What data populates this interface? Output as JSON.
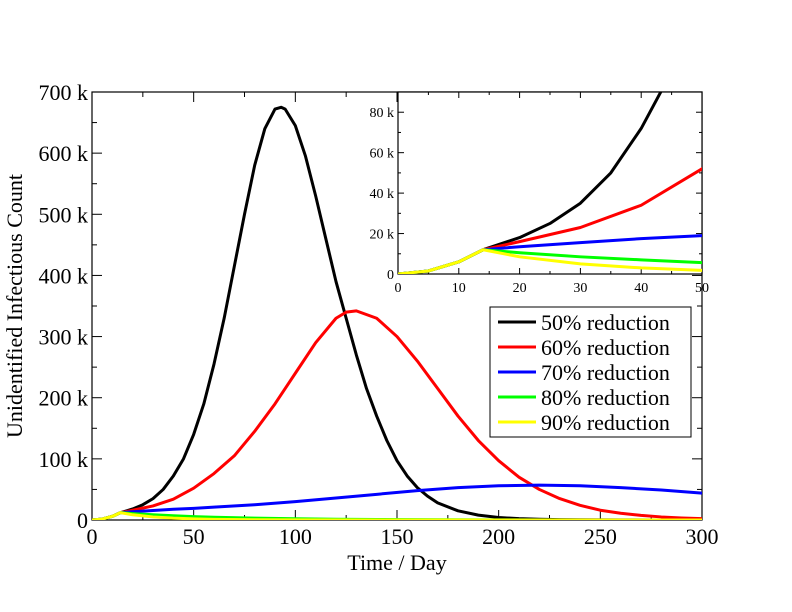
{
  "chart_data": {
    "type": "line",
    "xlabel": "Time / Day",
    "ylabel": "Unidentified Infectious Count",
    "xlim": [
      0,
      300
    ],
    "ylim": [
      0,
      700000
    ],
    "x_ticks": [
      {
        "value": 0,
        "label": "0"
      },
      {
        "value": 50,
        "label": "50"
      },
      {
        "value": 100,
        "label": "100"
      },
      {
        "value": 150,
        "label": "150"
      },
      {
        "value": 200,
        "label": "200"
      },
      {
        "value": 250,
        "label": "250"
      },
      {
        "value": 300,
        "label": "300"
      }
    ],
    "y_ticks": [
      {
        "value": 0,
        "label": "0"
      },
      {
        "value": 100000,
        "label": "100 k"
      },
      {
        "value": 200000,
        "label": "200 k"
      },
      {
        "value": 300000,
        "label": "300 k"
      },
      {
        "value": 400000,
        "label": "400 k"
      },
      {
        "value": 500000,
        "label": "500 k"
      },
      {
        "value": 600000,
        "label": "600 k"
      },
      {
        "value": 700000,
        "label": "700 k"
      }
    ],
    "legend_position": "center-right",
    "series": [
      {
        "name": "50% reduction",
        "color": "#000000",
        "x": [
          0,
          5,
          10,
          14,
          20,
          25,
          30,
          35,
          40,
          45,
          50,
          55,
          60,
          65,
          70,
          75,
          80,
          85,
          90,
          93,
          95,
          100,
          105,
          110,
          115,
          120,
          125,
          130,
          135,
          140,
          145,
          150,
          155,
          160,
          165,
          170,
          180,
          190,
          200,
          210,
          220,
          230,
          240,
          260,
          280,
          300
        ],
        "y": [
          0,
          1500,
          6000,
          12000,
          18000,
          25000,
          35000,
          50000,
          72000,
          100000,
          140000,
          190000,
          255000,
          330000,
          415000,
          500000,
          580000,
          640000,
          672000,
          675000,
          672000,
          645000,
          595000,
          530000,
          460000,
          390000,
          330000,
          270000,
          215000,
          170000,
          130000,
          97000,
          72000,
          53000,
          39000,
          28000,
          15000,
          8000,
          4000,
          2200,
          1200,
          700,
          400,
          150,
          50,
          20
        ]
      },
      {
        "name": "60% reduction",
        "color": "#ff0000",
        "x": [
          0,
          5,
          10,
          14,
          20,
          30,
          40,
          50,
          60,
          70,
          80,
          90,
          100,
          110,
          120,
          125,
          130,
          140,
          150,
          160,
          170,
          180,
          190,
          200,
          210,
          220,
          230,
          240,
          250,
          260,
          270,
          280,
          290,
          300
        ],
        "y": [
          0,
          1500,
          6000,
          12000,
          16000,
          23000,
          34000,
          52000,
          76000,
          105000,
          145000,
          190000,
          240000,
          290000,
          330000,
          340000,
          342000,
          330000,
          300000,
          260000,
          215000,
          170000,
          130000,
          97000,
          70000,
          50000,
          35000,
          24000,
          16000,
          11000,
          7500,
          5000,
          3300,
          2200
        ]
      },
      {
        "name": "70% reduction",
        "color": "#0000ff",
        "x": [
          0,
          5,
          10,
          14,
          20,
          30,
          40,
          50,
          60,
          80,
          100,
          120,
          140,
          160,
          180,
          200,
          220,
          240,
          260,
          280,
          300
        ],
        "y": [
          0,
          1500,
          6000,
          12000,
          13500,
          15500,
          17500,
          19000,
          21000,
          25000,
          30000,
          36000,
          42000,
          48000,
          53000,
          56000,
          57000,
          56000,
          53000,
          49000,
          44000
        ]
      },
      {
        "name": "80% reduction",
        "color": "#00ff00",
        "x": [
          0,
          5,
          10,
          14,
          20,
          30,
          40,
          50,
          60,
          80,
          100,
          120,
          140,
          160,
          200,
          250,
          300
        ],
        "y": [
          0,
          1500,
          6000,
          12000,
          10500,
          8500,
          7000,
          5600,
          4600,
          3000,
          2000,
          1300,
          850,
          550,
          250,
          80,
          25
        ]
      },
      {
        "name": "90% reduction",
        "color": "#ffff00",
        "x": [
          0,
          5,
          10,
          14,
          20,
          30,
          40,
          50,
          60,
          80,
          100,
          150,
          200,
          250,
          300
        ],
        "y": [
          0,
          1500,
          6000,
          12000,
          8500,
          5000,
          3000,
          1800,
          1100,
          400,
          150,
          20,
          3,
          0,
          0
        ]
      }
    ],
    "inset": {
      "xlim": [
        0,
        50
      ],
      "ylim": [
        0,
        90000
      ],
      "x_ticks": [
        {
          "value": 0,
          "label": "0"
        },
        {
          "value": 10,
          "label": "10"
        },
        {
          "value": 20,
          "label": "20"
        },
        {
          "value": 30,
          "label": "30"
        },
        {
          "value": 40,
          "label": "40"
        },
        {
          "value": 50,
          "label": "50"
        }
      ],
      "y_ticks": [
        {
          "value": 0,
          "label": "0"
        },
        {
          "value": 20000,
          "label": "20 k"
        },
        {
          "value": 40000,
          "label": "40 k"
        },
        {
          "value": 60000,
          "label": "60 k"
        },
        {
          "value": 80000,
          "label": "80 k"
        }
      ]
    }
  }
}
